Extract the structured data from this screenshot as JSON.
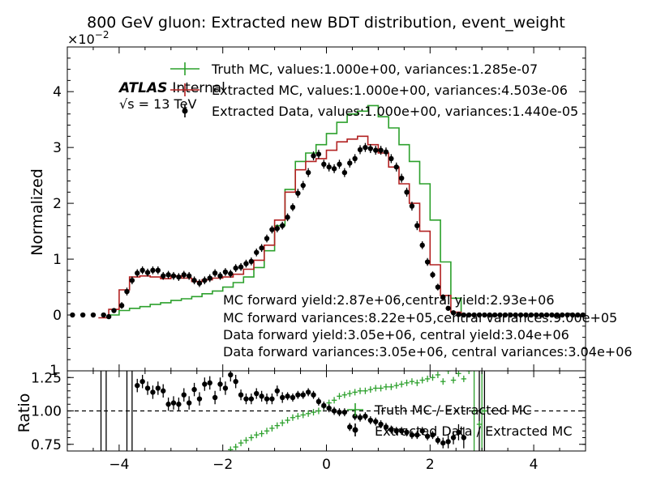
{
  "figure": {
    "title": "800 GeV gluon: Extracted new BDT distribution, event_weight",
    "exponent_label": "×10",
    "exponent_power": "−2",
    "atlas_label": "ATLAS",
    "internal_label": "Internal",
    "energy_prefix": "√s",
    "energy_value": " = 13 TeV",
    "yield_lines": [
      "MC forward yield:2.87e+06,central yield:2.93e+06",
      "MC forward variances:8.22e+05,central variances:9.00e+05",
      "Data forward yield:3.05e+06, central yield:3.04e+06",
      "Data forward variances:3.05e+06, central variances:3.04e+06"
    ]
  },
  "colors": {
    "truth_mc": "#2ca02c",
    "extracted_mc": "#b22222",
    "extracted_data": "#000000"
  },
  "chart_data": [
    {
      "type": "line",
      "panel": "main",
      "ylabel": "Normalized",
      "xlim": [
        -5,
        5
      ],
      "ylim": [
        -1,
        4.8
      ],
      "y_scale_note": "values in units of 1e-2",
      "yticks": [
        "0",
        "1",
        "2",
        "3",
        "4"
      ],
      "yticks_values": [
        0,
        1,
        2,
        3,
        4
      ],
      "bottom_tick_partial": "1",
      "legend_position": "top-right",
      "legend": [
        "Truth MC, values:1.000e+00, variances:1.285e-07",
        "Extracted MC, values:1.000e+00, variances:4.503e-06",
        "Extracted Data, values:1.000e+00, variances:1.440e-05"
      ],
      "series": [
        {
          "name": "Truth MC, values:1.000e+00, variances:1.285e-07",
          "style": "step",
          "x": [
            -4.1,
            -3.9,
            -3.7,
            -3.5,
            -3.3,
            -3.1,
            -2.9,
            -2.7,
            -2.5,
            -2.3,
            -2.1,
            -1.9,
            -1.7,
            -1.5,
            -1.3,
            -1.1,
            -0.9,
            -0.7,
            -0.5,
            -0.3,
            -0.1,
            0.1,
            0.3,
            0.5,
            0.7,
            0.9,
            1.1,
            1.3,
            1.5,
            1.7,
            1.9,
            2.1,
            2.3,
            2.5,
            2.7
          ],
          "y": [
            0.0,
            0.08,
            0.12,
            0.15,
            0.19,
            0.22,
            0.26,
            0.29,
            0.33,
            0.38,
            0.43,
            0.5,
            0.58,
            0.68,
            0.85,
            1.15,
            1.6,
            2.25,
            2.75,
            2.9,
            3.05,
            3.25,
            3.45,
            3.6,
            3.65,
            3.75,
            3.55,
            3.35,
            3.05,
            2.75,
            2.35,
            1.7,
            0.95,
            0.3,
            0.0
          ]
        },
        {
          "name": "Extracted MC, values:1.000e+00, variances:4.503e-06",
          "style": "step",
          "x": [
            -4.3,
            -4.1,
            -3.9,
            -3.7,
            -3.5,
            -3.3,
            -3.1,
            -2.9,
            -2.7,
            -2.5,
            -2.3,
            -2.1,
            -1.9,
            -1.7,
            -1.5,
            -1.3,
            -1.1,
            -0.9,
            -0.7,
            -0.5,
            -0.3,
            -0.1,
            0.1,
            0.3,
            0.5,
            0.7,
            0.9,
            1.1,
            1.3,
            1.5,
            1.7,
            1.9,
            2.1,
            2.3,
            2.5,
            2.7
          ],
          "y": [
            -0.05,
            0.1,
            0.45,
            0.68,
            0.7,
            0.68,
            0.65,
            0.7,
            0.66,
            0.6,
            0.63,
            0.66,
            0.68,
            0.73,
            0.82,
            0.98,
            1.25,
            1.7,
            2.2,
            2.6,
            2.75,
            2.8,
            2.95,
            3.1,
            3.15,
            3.2,
            3.05,
            2.9,
            2.65,
            2.35,
            2.0,
            1.5,
            0.9,
            0.35,
            0.05,
            0.0
          ]
        },
        {
          "name": "Extracted Data, values:1.000e+00, variances:1.440e-05",
          "style": "points",
          "x": [
            -4.9,
            -4.7,
            -4.5,
            -4.3,
            -4.2,
            -4.1,
            -3.95,
            -3.85,
            -3.75,
            -3.65,
            -3.55,
            -3.45,
            -3.35,
            -3.25,
            -3.15,
            -3.05,
            -2.95,
            -2.85,
            -2.75,
            -2.65,
            -2.55,
            -2.45,
            -2.35,
            -2.25,
            -2.15,
            -2.05,
            -1.95,
            -1.85,
            -1.75,
            -1.65,
            -1.55,
            -1.45,
            -1.35,
            -1.25,
            -1.15,
            -1.05,
            -0.95,
            -0.85,
            -0.75,
            -0.65,
            -0.55,
            -0.45,
            -0.35,
            -0.25,
            -0.15,
            -0.05,
            0.05,
            0.15,
            0.25,
            0.35,
            0.45,
            0.55,
            0.65,
            0.75,
            0.85,
            0.95,
            1.05,
            1.15,
            1.25,
            1.35,
            1.45,
            1.55,
            1.65,
            1.75,
            1.85,
            1.95,
            2.05,
            2.15,
            2.25,
            2.35,
            2.45,
            2.55,
            2.65,
            2.75,
            2.85,
            2.95,
            3.05,
            3.15,
            3.25,
            3.35,
            3.45,
            3.55,
            3.65,
            3.75,
            3.85,
            3.95,
            4.05,
            4.15,
            4.25,
            4.35,
            4.45,
            4.55,
            4.65,
            4.75,
            4.85,
            4.95
          ],
          "y": [
            0,
            0,
            0,
            0,
            -0.03,
            0.08,
            0.17,
            0.42,
            0.62,
            0.75,
            0.8,
            0.76,
            0.8,
            0.8,
            0.7,
            0.72,
            0.7,
            0.68,
            0.72,
            0.7,
            0.62,
            0.57,
            0.62,
            0.66,
            0.75,
            0.7,
            0.77,
            0.74,
            0.84,
            0.86,
            0.92,
            0.96,
            1.12,
            1.2,
            1.37,
            1.53,
            1.55,
            1.6,
            1.75,
            1.93,
            2.18,
            2.32,
            2.55,
            2.85,
            2.88,
            2.7,
            2.65,
            2.62,
            2.7,
            2.55,
            2.72,
            2.8,
            2.96,
            3.0,
            2.98,
            2.95,
            2.95,
            2.92,
            2.8,
            2.65,
            2.45,
            2.2,
            1.95,
            1.6,
            1.25,
            0.95,
            0.72,
            0.5,
            0.32,
            0.12,
            0.04,
            0.01,
            0,
            0,
            0,
            0,
            0,
            0,
            0,
            0,
            0,
            0,
            0,
            0,
            0,
            0,
            0,
            0,
            0,
            0,
            0,
            0,
            0,
            0,
            0,
            0
          ],
          "yerr": [
            0.02,
            0.02,
            0.02,
            0.02,
            0.03,
            0.04,
            0.06,
            0.07,
            0.07,
            0.07,
            0.07,
            0.07,
            0.07,
            0.07,
            0.07,
            0.07,
            0.07,
            0.07,
            0.07,
            0.07,
            0.07,
            0.07,
            0.07,
            0.07,
            0.07,
            0.07,
            0.07,
            0.07,
            0.07,
            0.07,
            0.07,
            0.07,
            0.07,
            0.07,
            0.07,
            0.07,
            0.07,
            0.07,
            0.07,
            0.07,
            0.08,
            0.08,
            0.08,
            0.08,
            0.08,
            0.08,
            0.08,
            0.08,
            0.08,
            0.08,
            0.08,
            0.08,
            0.08,
            0.08,
            0.08,
            0.08,
            0.08,
            0.08,
            0.08,
            0.08,
            0.08,
            0.08,
            0.08,
            0.08,
            0.07,
            0.07,
            0.06,
            0.06,
            0.05,
            0.04,
            0.03,
            0.02,
            0.02,
            0.02,
            0.02,
            0.02,
            0.02,
            0.02,
            0.02,
            0.02,
            0.02,
            0.02,
            0.02,
            0.02,
            0.02,
            0.02,
            0.02,
            0.02,
            0.02,
            0.02,
            0.02,
            0.02,
            0.02,
            0.02,
            0.02,
            0.02
          ]
        }
      ]
    },
    {
      "type": "line",
      "panel": "ratio",
      "ylabel": "Ratio",
      "xlim": [
        -5,
        5
      ],
      "ylim": [
        0.7,
        1.3
      ],
      "xticks": [
        "−4",
        "−2",
        "0",
        "2",
        "4"
      ],
      "xticks_values": [
        -4,
        -2,
        0,
        2,
        4
      ],
      "yticks": [
        "0.75",
        "1.00",
        "1.25"
      ],
      "yticks_values": [
        0.75,
        1.0,
        1.25
      ],
      "reference_line": 1.0,
      "legend_position": "right",
      "legend": [
        "Truth MC / Extracted MC",
        "Extracted Data / Extracted MC"
      ],
      "series": [
        {
          "name": "Truth MC / Extracted MC",
          "style": "points",
          "x": [
            -1.85,
            -1.75,
            -1.65,
            -1.55,
            -1.45,
            -1.35,
            -1.25,
            -1.15,
            -1.05,
            -0.95,
            -0.85,
            -0.75,
            -0.65,
            -0.55,
            -0.45,
            -0.35,
            -0.25,
            -0.15,
            -0.05,
            0.05,
            0.15,
            0.25,
            0.35,
            0.45,
            0.55,
            0.65,
            0.75,
            0.85,
            0.95,
            1.05,
            1.15,
            1.25,
            1.35,
            1.45,
            1.55,
            1.65,
            1.75,
            1.85,
            1.95,
            2.05,
            2.15,
            2.25,
            2.35,
            2.45,
            2.55,
            2.65,
            2.75,
            2.85,
            2.95,
            3.05
          ],
          "y": [
            0.71,
            0.73,
            0.76,
            0.78,
            0.8,
            0.82,
            0.83,
            0.85,
            0.87,
            0.89,
            0.91,
            0.93,
            0.95,
            0.96,
            0.97,
            0.98,
            0.99,
            1.0,
            1.03,
            1.06,
            1.08,
            1.11,
            1.12,
            1.13,
            1.14,
            1.15,
            1.15,
            1.16,
            1.17,
            1.17,
            1.18,
            1.18,
            1.19,
            1.2,
            1.21,
            1.22,
            1.21,
            1.23,
            1.24,
            1.25,
            1.27,
            1.22,
            1.3,
            1.23,
            1.28,
            1.24,
            1.3,
            1.0,
            0.9,
            1.0
          ]
        },
        {
          "name": "Extracted Data / Extracted MC",
          "style": "points",
          "x": [
            -3.65,
            -3.55,
            -3.45,
            -3.35,
            -3.25,
            -3.15,
            -3.05,
            -2.95,
            -2.85,
            -2.75,
            -2.65,
            -2.55,
            -2.45,
            -2.35,
            -2.25,
            -2.15,
            -2.05,
            -1.95,
            -1.85,
            -1.75,
            -1.65,
            -1.55,
            -1.45,
            -1.35,
            -1.25,
            -1.15,
            -1.05,
            -0.95,
            -0.85,
            -0.75,
            -0.65,
            -0.55,
            -0.45,
            -0.35,
            -0.25,
            -0.15,
            -0.05,
            0.05,
            0.15,
            0.25,
            0.35,
            0.45,
            0.55,
            0.65,
            0.75,
            0.85,
            0.95,
            1.05,
            1.15,
            1.25,
            1.35,
            1.45,
            1.55,
            1.65,
            1.75,
            1.85,
            1.95,
            2.05,
            2.15,
            2.25,
            2.35,
            2.45,
            2.55,
            2.65
          ],
          "y": [
            1.19,
            1.22,
            1.17,
            1.14,
            1.17,
            1.15,
            1.05,
            1.06,
            1.05,
            1.12,
            1.06,
            1.16,
            1.09,
            1.2,
            1.21,
            1.1,
            1.2,
            1.17,
            1.27,
            1.22,
            1.12,
            1.09,
            1.09,
            1.13,
            1.11,
            1.09,
            1.09,
            1.15,
            1.1,
            1.11,
            1.1,
            1.12,
            1.12,
            1.14,
            1.12,
            1.07,
            1.04,
            1.02,
            1.0,
            0.99,
            0.99,
            0.88,
            0.96,
            0.95,
            0.96,
            0.93,
            0.92,
            0.9,
            0.88,
            0.86,
            0.85,
            0.85,
            0.84,
            0.82,
            0.82,
            0.85,
            0.81,
            0.82,
            0.78,
            0.76,
            0.77,
            0.8,
            0.84,
            0.8
          ],
          "yerr": [
            0.05,
            0.05,
            0.05,
            0.05,
            0.05,
            0.05,
            0.05,
            0.05,
            0.05,
            0.05,
            0.05,
            0.05,
            0.05,
            0.05,
            0.05,
            0.05,
            0.05,
            0.05,
            0.05,
            0.05,
            0.04,
            0.04,
            0.04,
            0.04,
            0.04,
            0.04,
            0.04,
            0.04,
            0.04,
            0.03,
            0.03,
            0.03,
            0.03,
            0.03,
            0.03,
            0.03,
            0.03,
            0.03,
            0.03,
            0.03,
            0.03,
            0.03,
            0.03,
            0.03,
            0.03,
            0.03,
            0.03,
            0.03,
            0.03,
            0.03,
            0.03,
            0.03,
            0.03,
            0.03,
            0.03,
            0.03,
            0.03,
            0.03,
            0.03,
            0.04,
            0.05,
            0.05,
            0.06,
            0.08
          ]
        }
      ]
    }
  ]
}
